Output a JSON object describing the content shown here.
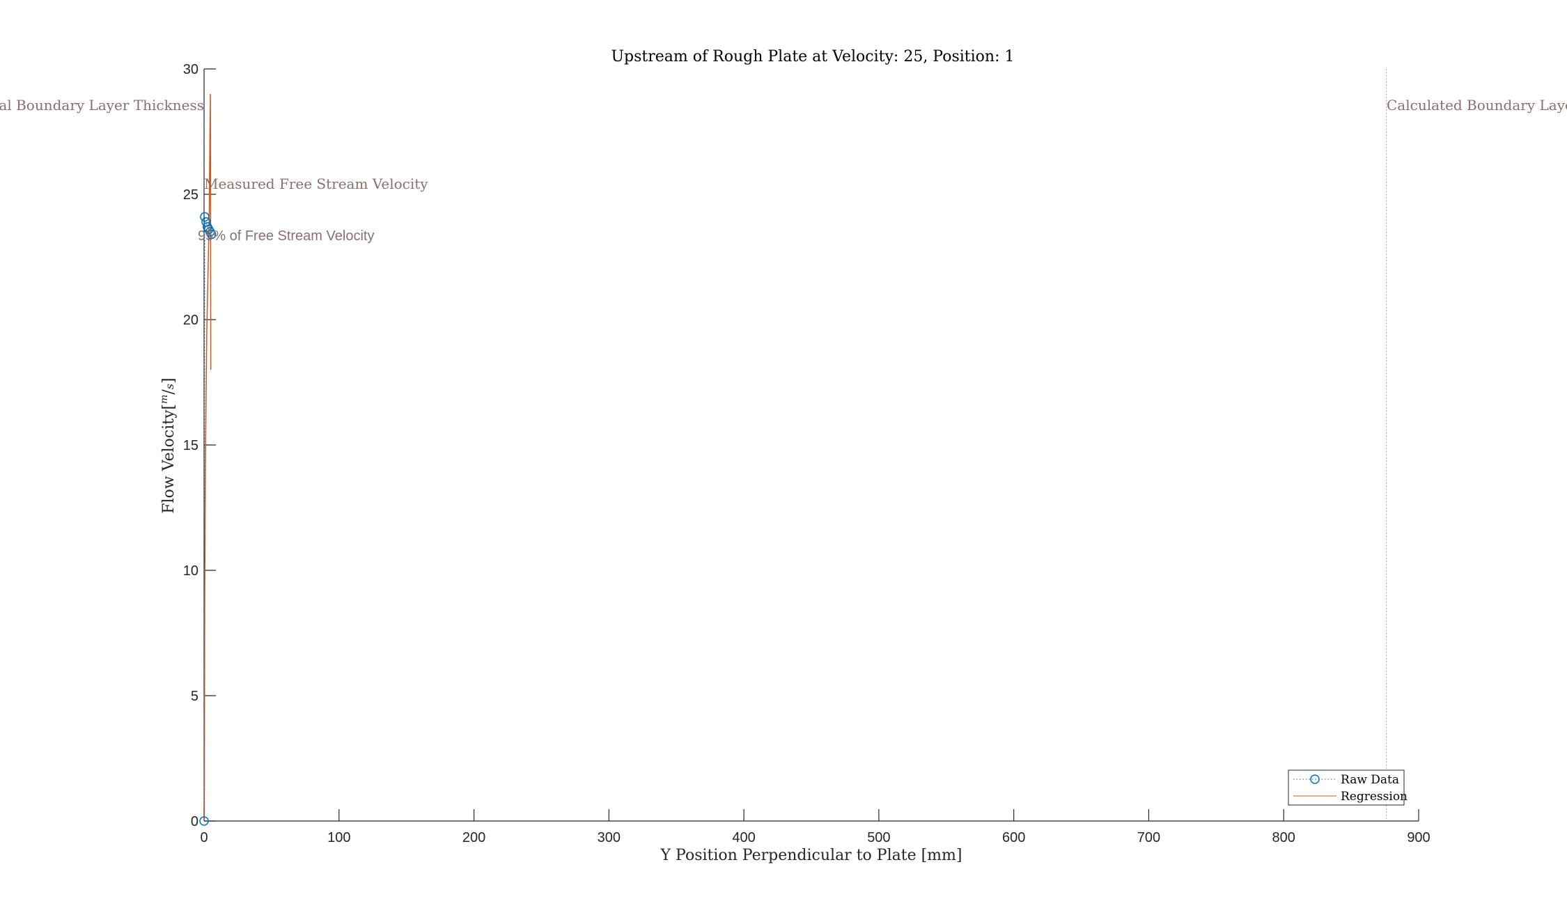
{
  "chart_data": {
    "type": "line",
    "title": "Upstream of Rough Plate at Velocity: 25, Position: 1",
    "xlabel": "Y Position Perpendicular to Plate [mm]",
    "ylabel": "Flow Velocity[m/s]",
    "ylabel_main": "Flow Velocity",
    "ylabel_unit_open": "[",
    "ylabel_unit_num": "m",
    "ylabel_unit_sep": "/",
    "ylabel_unit_den": "s",
    "ylabel_unit_close": "]",
    "xlim": [
      0,
      900
    ],
    "ylim": [
      0,
      30
    ],
    "xticks": [
      0,
      100,
      200,
      300,
      400,
      500,
      600,
      700,
      800,
      900
    ],
    "yticks": [
      0,
      5,
      10,
      15,
      20,
      25,
      30
    ],
    "grid": false,
    "legend_position": "bottom-right",
    "series": [
      {
        "name": "Raw Data",
        "style": "dotted line with circle markers",
        "color": "#0072bd",
        "x": [
          0,
          0.5,
          1.5,
          2.5,
          3.5,
          4.5,
          5.5
        ],
        "y": [
          0,
          24.1,
          23.9,
          23.7,
          23.6,
          23.5,
          23.4
        ]
      },
      {
        "name": "Regression",
        "style": "solid line",
        "color": "#d95319",
        "x": [
          0.2,
          0.5,
          1,
          1.5,
          2,
          3,
          3.8,
          4.3,
          4.7,
          5.0
        ],
        "y": [
          0,
          9,
          14,
          17,
          19.5,
          22,
          24,
          27,
          29,
          18
        ]
      }
    ],
    "annotations": [
      {
        "text": "Theoretical Boundary Layer Thickness",
        "style": "serif"
      },
      {
        "text": "Measured Free Stream Velocity",
        "style": "serif"
      },
      {
        "text": "95% of Free Stream Velocity",
        "style": "sans"
      },
      {
        "text": "Calculated Boundary Layer Thickness",
        "style": "serif"
      }
    ],
    "reference_lines": [
      {
        "orientation": "vertical",
        "x": 876,
        "style": "dotted",
        "color": "#a0a0a0"
      }
    ]
  }
}
